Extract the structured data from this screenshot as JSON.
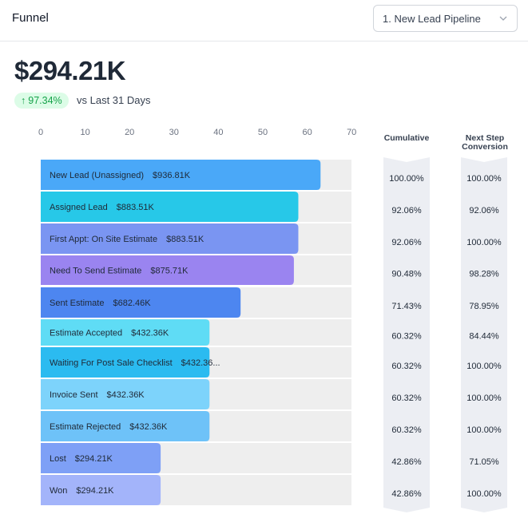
{
  "header": {
    "title": "Funnel",
    "pipeline_select": "1. New Lead Pipeline"
  },
  "summary": {
    "total": "$294.21K",
    "change": "97.34%",
    "compare_label": "vs Last 31 Days"
  },
  "columns": {
    "cumulative": "Cumulative",
    "next_step_line1": "Next Step",
    "next_step_line2": "Conversion"
  },
  "colors": {
    "track": "#eeeeee",
    "chevron": "#eceef3",
    "badge_bg": "#dcfce7",
    "badge_text": "#16a34a"
  },
  "chart_data": {
    "type": "bar",
    "orientation": "horizontal",
    "xlim": [
      0,
      70
    ],
    "xticks": [
      0,
      10,
      20,
      30,
      40,
      50,
      60,
      70
    ],
    "grid": false,
    "categories": [
      "New Lead (Unassigned)",
      "Assigned Lead",
      "First Appt: On Site Estimate",
      "Need To Send Estimate",
      "Sent Estimate",
      "Estimate Accepted",
      "Waiting For Post Sale Checklist",
      "Invoice Sent",
      "Estimate Rejected",
      "Lost",
      "Won"
    ],
    "values": [
      63,
      58,
      58,
      57,
      45,
      38,
      38,
      38,
      38,
      27,
      27
    ],
    "amount_labels": [
      "$936.81K",
      "$883.51K",
      "$883.51K",
      "$875.71K",
      "$682.46K",
      "$432.36K",
      "$432.36...",
      "$432.36K",
      "$432.36K",
      "$294.21K",
      "$294.21K"
    ],
    "cumulative": [
      "100.00%",
      "92.06%",
      "92.06%",
      "90.48%",
      "71.43%",
      "60.32%",
      "60.32%",
      "60.32%",
      "60.32%",
      "42.86%",
      "42.86%"
    ],
    "next_step_conversion": [
      "100.00%",
      "92.06%",
      "100.00%",
      "98.28%",
      "78.95%",
      "84.44%",
      "100.00%",
      "100.00%",
      "100.00%",
      "71.05%",
      "100.00%"
    ],
    "bar_colors": [
      "#4aa8f8",
      "#27c8e8",
      "#7a95f2",
      "#9a84f0",
      "#4d86f0",
      "#5fdcf5",
      "#2bbbf0",
      "#7dd3fb",
      "#6ec2f8",
      "#7ea0f6",
      "#a3b4fa"
    ]
  }
}
